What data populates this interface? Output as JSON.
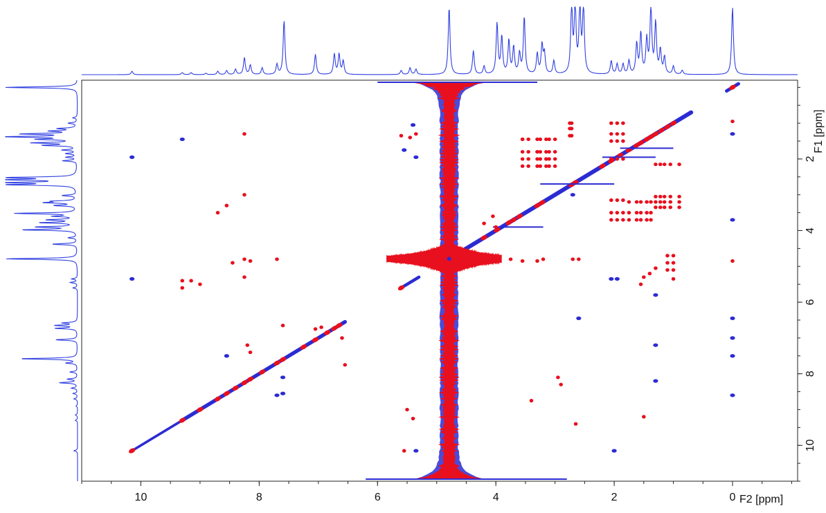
{
  "chart_data": {
    "type": "heatmap",
    "subtype": "2D NMR TOCSY (homonuclear) contour plot with 1D projections",
    "colors": {
      "positive": "#2b2bd4",
      "negative": "#e8101e",
      "projection": "#2f3fe0",
      "frame": "#222222"
    },
    "x_axis": {
      "label": "F2 [ppm]",
      "reversed": true,
      "range": [
        11.0,
        -1.1
      ],
      "ticks": [
        10,
        8,
        6,
        4,
        2,
        0
      ],
      "tick_labels": [
        "10",
        "8",
        "6",
        "4",
        "2",
        "0"
      ]
    },
    "y_axis": {
      "label": "F1 [ppm]",
      "position": "right",
      "reversed": true,
      "range": [
        -0.2,
        11.0
      ],
      "ticks": [
        2,
        4,
        6,
        8,
        10
      ],
      "tick_labels": [
        "2",
        "4",
        "6",
        "8",
        "10"
      ]
    },
    "projection_peaks": [
      {
        "ppm": 10.15,
        "h": 0.05
      },
      {
        "ppm": 9.3,
        "h": 0.03
      },
      {
        "ppm": 9.15,
        "h": 0.03
      },
      {
        "ppm": 8.9,
        "h": 0.02
      },
      {
        "ppm": 8.7,
        "h": 0.05
      },
      {
        "ppm": 8.55,
        "h": 0.06
      },
      {
        "ppm": 8.4,
        "h": 0.08
      },
      {
        "ppm": 8.25,
        "h": 0.25
      },
      {
        "ppm": 8.15,
        "h": 0.14
      },
      {
        "ppm": 7.95,
        "h": 0.1
      },
      {
        "ppm": 7.7,
        "h": 0.15
      },
      {
        "ppm": 7.58,
        "h": 0.8
      },
      {
        "ppm": 7.05,
        "h": 0.3
      },
      {
        "ppm": 6.73,
        "h": 0.3
      },
      {
        "ppm": 6.65,
        "h": 0.3
      },
      {
        "ppm": 6.58,
        "h": 0.2
      },
      {
        "ppm": 5.6,
        "h": 0.06
      },
      {
        "ppm": 5.45,
        "h": 0.1
      },
      {
        "ppm": 5.35,
        "h": 0.08
      },
      {
        "ppm": 4.79,
        "h": 1.0
      },
      {
        "ppm": 4.38,
        "h": 0.35
      },
      {
        "ppm": 4.2,
        "h": 0.12
      },
      {
        "ppm": 3.98,
        "h": 0.75
      },
      {
        "ppm": 3.9,
        "h": 0.55
      },
      {
        "ppm": 3.78,
        "h": 0.5
      },
      {
        "ppm": 3.7,
        "h": 0.4
      },
      {
        "ppm": 3.6,
        "h": 0.3
      },
      {
        "ppm": 3.52,
        "h": 0.85
      },
      {
        "ppm": 3.3,
        "h": 0.3
      },
      {
        "ppm": 3.22,
        "h": 0.42
      },
      {
        "ppm": 3.18,
        "h": 0.3
      },
      {
        "ppm": 3.02,
        "h": 0.2
      },
      {
        "ppm": 2.72,
        "h": 1.0
      },
      {
        "ppm": 2.66,
        "h": 1.0
      },
      {
        "ppm": 2.58,
        "h": 1.0
      },
      {
        "ppm": 2.52,
        "h": 1.0
      },
      {
        "ppm": 2.05,
        "h": 0.2
      },
      {
        "ppm": 1.95,
        "h": 0.15
      },
      {
        "ppm": 1.85,
        "h": 0.15
      },
      {
        "ppm": 1.75,
        "h": 0.2
      },
      {
        "ppm": 1.62,
        "h": 0.45
      },
      {
        "ppm": 1.55,
        "h": 0.6
      },
      {
        "ppm": 1.45,
        "h": 0.5
      },
      {
        "ppm": 1.38,
        "h": 1.0
      },
      {
        "ppm": 1.3,
        "h": 0.75
      },
      {
        "ppm": 1.22,
        "h": 0.35
      },
      {
        "ppm": 1.15,
        "h": 0.25
      },
      {
        "ppm": 1.0,
        "h": 0.12
      },
      {
        "ppm": 0.85,
        "h": 0.06
      },
      {
        "ppm": 0.0,
        "h": 1.0
      }
    ],
    "diagonal_segments": [
      {
        "from": 10.15,
        "to": 9.3,
        "density": 0.2
      },
      {
        "from": 9.3,
        "to": 6.55,
        "density": 0.8
      },
      {
        "from": 5.6,
        "to": 5.3,
        "density": 0.5
      },
      {
        "from": 4.6,
        "to": 0.7,
        "density": 1.0
      },
      {
        "from": 0.1,
        "to": -0.1,
        "density": 0.6
      }
    ],
    "diagonal_red_peaks": [
      10.15,
      9.3,
      9.0,
      8.7,
      8.55,
      8.4,
      8.25,
      8.15,
      7.95,
      7.7,
      7.6,
      7.25,
      7.05,
      6.85,
      6.73,
      6.65,
      5.6,
      4.2,
      3.98,
      3.78,
      3.7,
      3.6,
      3.3,
      3.22,
      2.72,
      2.66,
      2.2,
      2.05,
      1.9,
      1.75,
      1.62,
      1.55,
      1.45,
      1.38,
      1.3,
      1.2,
      1.1,
      1.0,
      0.0
    ],
    "solvent": {
      "ppm": 4.79,
      "label": ""
    },
    "cross_peaks": [
      {
        "x": 10.15,
        "y": 5.35,
        "c": "b"
      },
      {
        "x": 10.15,
        "y": 1.95,
        "c": "b"
      },
      {
        "x": 9.3,
        "y": 1.45,
        "c": "b"
      },
      {
        "x": 9.3,
        "y": 5.4,
        "c": "r"
      },
      {
        "x": 9.3,
        "y": 5.6,
        "c": "r"
      },
      {
        "x": 9.15,
        "y": 5.4,
        "c": "r"
      },
      {
        "x": 9.0,
        "y": 5.5,
        "c": "r"
      },
      {
        "x": 8.7,
        "y": 3.5,
        "c": "r"
      },
      {
        "x": 8.55,
        "y": 3.3,
        "c": "r"
      },
      {
        "x": 8.45,
        "y": 4.9,
        "c": "r"
      },
      {
        "x": 8.25,
        "y": 1.3,
        "c": "r"
      },
      {
        "x": 8.25,
        "y": 3.0,
        "c": "r"
      },
      {
        "x": 8.25,
        "y": 4.8,
        "c": "r"
      },
      {
        "x": 8.25,
        "y": 5.3,
        "c": "r"
      },
      {
        "x": 8.2,
        "y": 7.2,
        "c": "r"
      },
      {
        "x": 8.15,
        "y": 4.85,
        "c": "r"
      },
      {
        "x": 8.15,
        "y": 7.4,
        "c": "r"
      },
      {
        "x": 7.7,
        "y": 4.8,
        "c": "r"
      },
      {
        "x": 7.6,
        "y": 6.65,
        "c": "r"
      },
      {
        "x": 7.7,
        "y": 8.6,
        "c": "b"
      },
      {
        "x": 7.6,
        "y": 8.55,
        "c": "b"
      },
      {
        "x": 7.6,
        "y": 8.1,
        "c": "b"
      },
      {
        "x": 8.55,
        "y": 7.5,
        "c": "b"
      },
      {
        "x": 7.05,
        "y": 6.75,
        "c": "r"
      },
      {
        "x": 6.95,
        "y": 6.7,
        "c": "r"
      },
      {
        "x": 6.6,
        "y": 7.0,
        "c": "r"
      },
      {
        "x": 6.55,
        "y": 7.75,
        "c": "r"
      },
      {
        "x": 5.6,
        "y": 1.35,
        "c": "r"
      },
      {
        "x": 5.55,
        "y": 1.75,
        "c": "b"
      },
      {
        "x": 5.45,
        "y": 1.4,
        "c": "r"
      },
      {
        "x": 5.35,
        "y": 1.3,
        "c": "r"
      },
      {
        "x": 5.4,
        "y": 1.05,
        "c": "b"
      },
      {
        "x": 5.35,
        "y": 1.95,
        "c": "b"
      },
      {
        "x": 5.5,
        "y": 9.0,
        "c": "r"
      },
      {
        "x": 5.4,
        "y": 9.25,
        "c": "r"
      },
      {
        "x": 5.55,
        "y": 10.15,
        "c": "r"
      },
      {
        "x": 5.35,
        "y": 10.15,
        "c": "b"
      },
      {
        "x": 4.0,
        "y": 3.9,
        "c": "r"
      },
      {
        "x": 4.05,
        "y": 3.6,
        "c": "r"
      },
      {
        "x": 3.95,
        "y": 4.8,
        "c": "r"
      },
      {
        "x": 4.2,
        "y": 3.8,
        "c": "r"
      },
      {
        "x": 3.75,
        "y": 4.8,
        "c": "r"
      },
      {
        "x": 3.55,
        "y": 4.85,
        "c": "r"
      },
      {
        "x": 3.3,
        "y": 4.85,
        "c": "r"
      },
      {
        "x": 3.2,
        "y": 4.8,
        "c": "r"
      },
      {
        "x": 3.4,
        "y": 8.75,
        "c": "r"
      },
      {
        "x": 2.95,
        "y": 8.1,
        "c": "r"
      },
      {
        "x": 2.9,
        "y": 8.3,
        "c": "r"
      },
      {
        "x": 2.65,
        "y": 9.4,
        "c": "r"
      },
      {
        "x": 2.7,
        "y": 3.0,
        "c": "b"
      },
      {
        "x": 2.6,
        "y": 6.45,
        "c": "b"
      },
      {
        "x": 2.7,
        "y": 4.8,
        "c": "r"
      },
      {
        "x": 2.6,
        "y": 4.8,
        "c": "r"
      },
      {
        "x": 2.05,
        "y": 5.35,
        "c": "b"
      },
      {
        "x": 1.95,
        "y": 5.35,
        "c": "b"
      },
      {
        "x": 2.0,
        "y": 10.15,
        "c": "b"
      },
      {
        "x": 1.5,
        "y": 5.3,
        "c": "r"
      },
      {
        "x": 1.4,
        "y": 5.2,
        "c": "r"
      },
      {
        "x": 1.3,
        "y": 5.05,
        "c": "r"
      },
      {
        "x": 1.55,
        "y": 5.5,
        "c": "r"
      },
      {
        "x": 1.3,
        "y": 7.2,
        "c": "b"
      },
      {
        "x": 1.3,
        "y": 8.2,
        "c": "b"
      },
      {
        "x": 1.5,
        "y": 9.2,
        "c": "r"
      },
      {
        "x": 1.3,
        "y": 5.8,
        "c": "b"
      },
      {
        "x": 1.0,
        "y": 5.35,
        "c": "r"
      },
      {
        "x": 0.0,
        "y": 1.3,
        "c": "b"
      },
      {
        "x": 0.0,
        "y": 3.7,
        "c": "b"
      },
      {
        "x": 0.0,
        "y": 4.85,
        "c": "r"
      },
      {
        "x": 0.0,
        "y": 6.45,
        "c": "b"
      },
      {
        "x": 0.0,
        "y": 7.0,
        "c": "b"
      },
      {
        "x": 0.0,
        "y": 7.5,
        "c": "b"
      },
      {
        "x": 0.0,
        "y": 8.6,
        "c": "b"
      },
      {
        "x": 0.0,
        "y": 0.95,
        "c": "r"
      }
    ],
    "cross_peak_grids": [
      {
        "xs": [
          3.55,
          3.45,
          3.3,
          3.25,
          3.15,
          3.1,
          3.0
        ],
        "ys": [
          1.45,
          1.8,
          2.0,
          2.2
        ],
        "c": "r"
      },
      {
        "xs": [
          2.75,
          2.72
        ],
        "ys": [
          1.0,
          1.15,
          1.35
        ],
        "c": "r"
      },
      {
        "xs": [
          2.05,
          1.95,
          1.85
        ],
        "ys": [
          1.0,
          1.3,
          1.5,
          2.0,
          3.15,
          3.5,
          3.7
        ],
        "c": "r"
      },
      {
        "xs": [
          1.75,
          1.62,
          1.55,
          1.45,
          1.38
        ],
        "ys": [
          3.5,
          3.7,
          3.2
        ],
        "c": "r"
      },
      {
        "xs": [
          1.3,
          1.22,
          1.15,
          1.05,
          0.9
        ],
        "ys": [
          3.05,
          3.2,
          3.35,
          2.15
        ],
        "c": "r"
      },
      {
        "xs": [
          1.1,
          1.0
        ],
        "ys": [
          4.7,
          4.9,
          5.1
        ],
        "c": "r"
      }
    ]
  }
}
